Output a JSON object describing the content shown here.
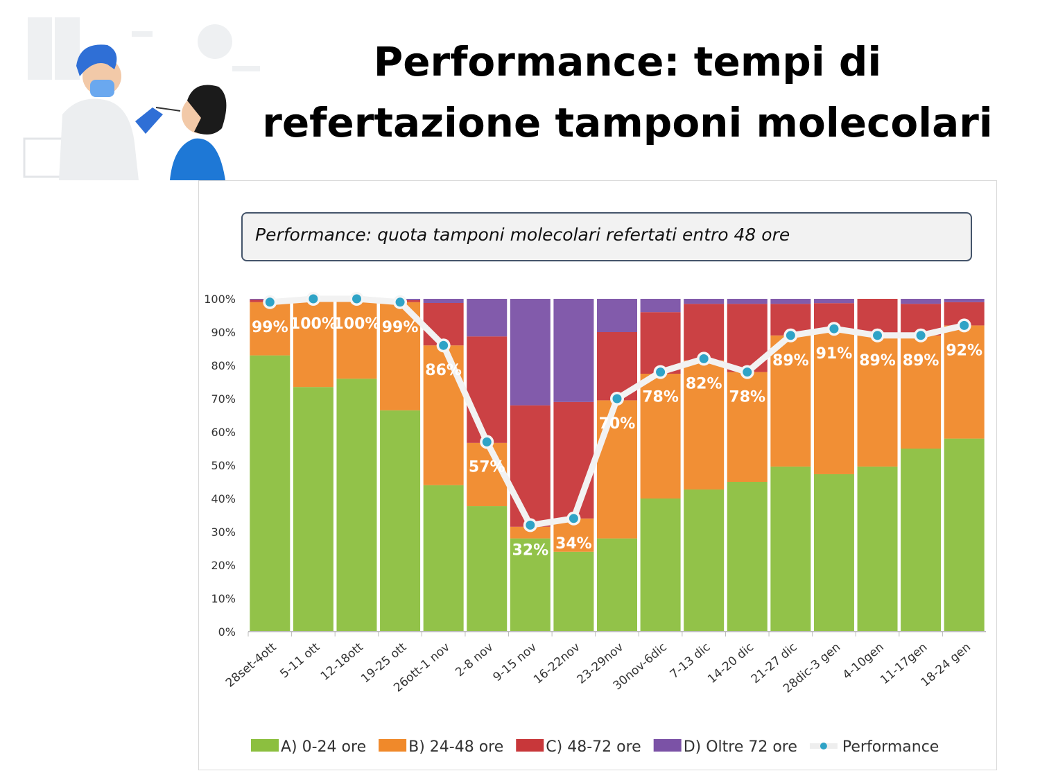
{
  "title_line1": "Performance: tempi di",
  "title_line2": "refertazione tamponi molecolari",
  "chart_data": {
    "type": "bar",
    "stacked": true,
    "title": "Performance: quota tamponi molecolari refertati entro 48 ore",
    "categories": [
      "28set-4ott",
      "5-11 ott",
      "12-18ott",
      "19-25 ott",
      "26ott-1 nov",
      "2-8 nov",
      "9-15 nov",
      "16-22nov",
      "23-29nov",
      "30nov-6dic",
      "7-13 dic",
      "14-20 dic",
      "21-27 dic",
      "28dic-3 gen",
      "4-10gen",
      "11-17gen",
      "18-24 gen"
    ],
    "series": [
      {
        "name": "A) 0-24 ore",
        "color": "#8cbf3f",
        "values": [
          83,
          73.5,
          76,
          66.5,
          44,
          37.7,
          28,
          24,
          28,
          40,
          42.7,
          45,
          49.6,
          47.3,
          49.6,
          55,
          58
        ]
      },
      {
        "name": "B) 24-48 ore",
        "color": "#f0892a",
        "values": [
          16,
          26.5,
          24,
          32.5,
          42,
          19,
          3.5,
          10,
          41.5,
          37.5,
          38.8,
          33,
          39.4,
          43.7,
          39.4,
          34,
          34
        ]
      },
      {
        "name": "C) 48-72 ore",
        "color": "#c8373a",
        "values": [
          0.7,
          0,
          0,
          0.6,
          12.75,
          32,
          36.5,
          35,
          20.5,
          18.5,
          17,
          20.5,
          9.5,
          7.7,
          11,
          9.5,
          7
        ]
      },
      {
        "name": "D) Oltre 72 ore",
        "color": "#7b52a6",
        "values": [
          0.3,
          0,
          0,
          0.4,
          1.25,
          11.3,
          32,
          31,
          10,
          4,
          1.5,
          1.5,
          1.5,
          1.3,
          0,
          1.5,
          1
        ]
      }
    ],
    "line": {
      "name": "Performance",
      "color": "#2fa3c6",
      "values": [
        99,
        100,
        100,
        99,
        86,
        57,
        32,
        34,
        70,
        78,
        82,
        78,
        89,
        91,
        89,
        89,
        92
      ],
      "labels": [
        "99%",
        "100%",
        "100%",
        "99%",
        "86%",
        "57%",
        "32%",
        "34%",
        "70%",
        "78%",
        "82%",
        "78%",
        "89%",
        "91%",
        "89%",
        "89%",
        "92%"
      ]
    },
    "yticks": [
      "0%",
      "10%",
      "20%",
      "30%",
      "40%",
      "50%",
      "60%",
      "70%",
      "80%",
      "90%",
      "100%"
    ],
    "ylim": [
      0,
      100
    ],
    "legend_position": "bottom"
  }
}
